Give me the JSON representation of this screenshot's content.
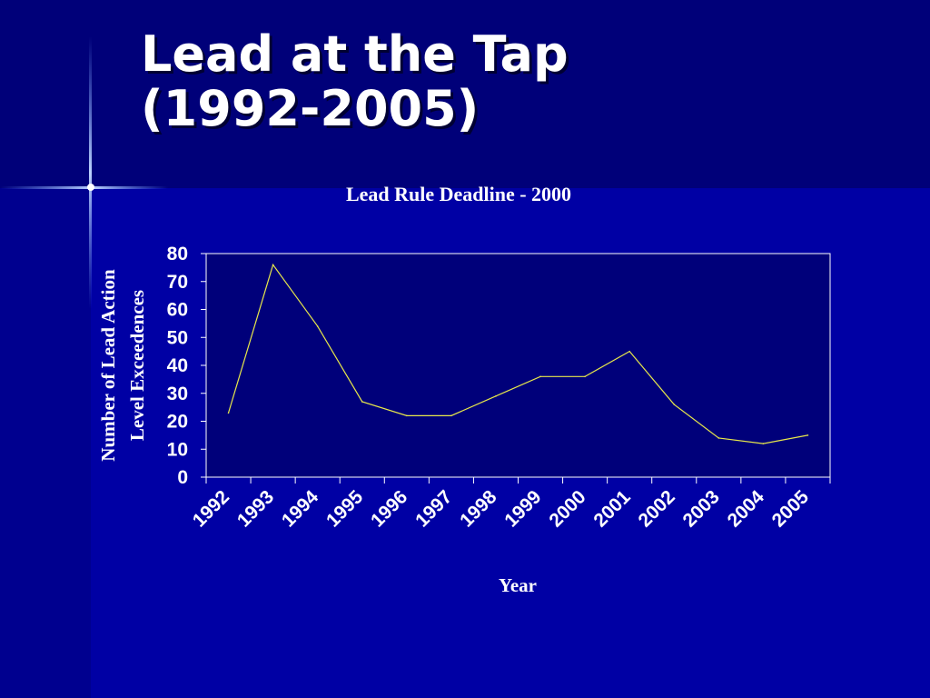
{
  "slide": {
    "title_line1": "Lead at the Tap",
    "title_line2": "(1992-2005)"
  },
  "colors": {
    "background": "#0000a4",
    "header_band": "#000079",
    "left_band": "#00008f",
    "plot_area": "#00007a",
    "line": "#e8e84a",
    "text": "#ffffff"
  },
  "chart_data": {
    "type": "line",
    "title": "Lead Rule Deadline - 2000",
    "xlabel": "Year",
    "ylabel_line1": "Number of Lead Action",
    "ylabel_line2": "Level Exceedences",
    "categories": [
      "1992",
      "1993",
      "1994",
      "1995",
      "1996",
      "1997",
      "1998",
      "1999",
      "2000",
      "2001",
      "2002",
      "2003",
      "2004",
      "2005"
    ],
    "values": [
      23,
      76,
      54,
      27,
      22,
      22,
      29,
      36,
      36,
      45,
      26,
      14,
      12,
      15
    ],
    "ylim": [
      0,
      80
    ],
    "yticks": [
      0,
      10,
      20,
      30,
      40,
      50,
      60,
      70,
      80
    ],
    "grid": false,
    "legend": "none"
  }
}
